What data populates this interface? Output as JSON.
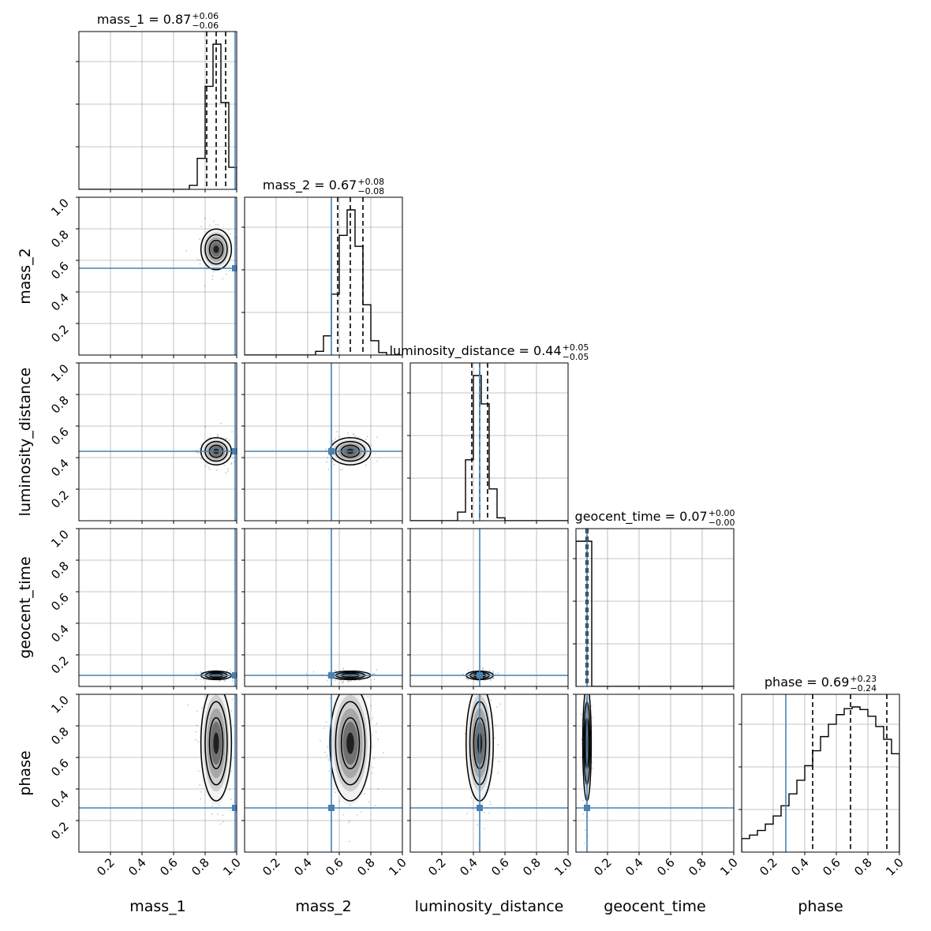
{
  "chart_data": {
    "type": "corner",
    "parameters": [
      "mass_1",
      "mass_2",
      "luminosity_distance",
      "geocent_time",
      "phase"
    ],
    "axis_range": [
      0,
      1
    ],
    "tick_labels": [
      "0.2",
      "0.4",
      "0.6",
      "0.8",
      "1.0"
    ],
    "grid": true,
    "truth_color": "#4682b4",
    "truths": [
      0.99,
      0.55,
      0.44,
      0.07,
      0.28
    ],
    "summaries": [
      {
        "name": "mass_1",
        "title": "mass_1 = 0.87",
        "plus": "+0.06",
        "minus": "−0.06",
        "median": 0.87,
        "q16": 0.81,
        "q84": 0.93,
        "mean": 0.87,
        "sigma": 0.045
      },
      {
        "name": "mass_2",
        "title": "mass_2 = 0.67",
        "plus": "+0.08",
        "minus": "−0.08",
        "median": 0.67,
        "q16": 0.59,
        "q84": 0.75,
        "mean": 0.67,
        "sigma": 0.06
      },
      {
        "name": "luminosity_distance",
        "title": "luminosity_distance = 0.44",
        "plus": "+0.05",
        "minus": "−0.05",
        "median": 0.44,
        "q16": 0.39,
        "q84": 0.49,
        "mean": 0.44,
        "sigma": 0.04
      },
      {
        "name": "geocent_time",
        "title": "geocent_time = 0.07",
        "plus": "+0.00",
        "minus": "−0.00",
        "median": 0.07,
        "q16": 0.065,
        "q84": 0.075,
        "mean": 0.07,
        "sigma": 0.006
      },
      {
        "name": "phase",
        "title": "phase = 0.69",
        "plus": "+0.23",
        "minus": "−0.24",
        "median": 0.69,
        "q16": 0.45,
        "q84": 0.92,
        "mean": 0.69,
        "sigma": 0.2
      }
    ]
  }
}
